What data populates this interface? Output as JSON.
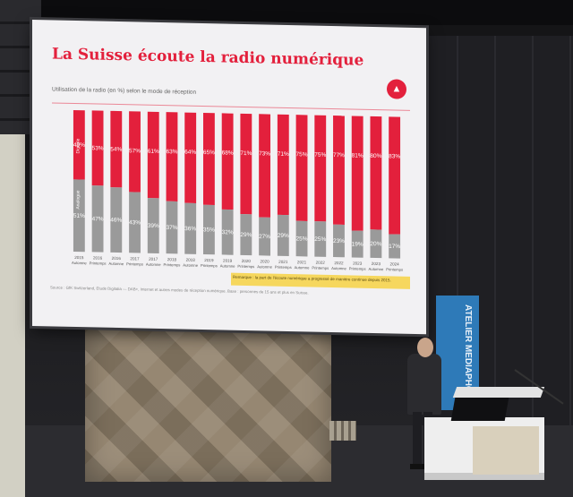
{
  "slide": {
    "title": "La Suisse écoute la radio numérique",
    "subtitle": "Utilisation de la radio (en %) selon le mode de réception",
    "logo_icon": "bar-chart-icon",
    "accent_color": "#e3203c",
    "analog_color": "#9a9a9a",
    "footnote": "Source : GfK Switzerland, Etude Digitalia — DAB+, Internet et autres modes de réception numérique. Base : personnes de 15 ans et plus en Suisse.",
    "yellow_note": "Remarque : la part de l'écoute numérique a progressé de manière continue depuis 2015."
  },
  "chart_data": {
    "type": "bar",
    "stacked": true,
    "categories": [
      "2015 Automne",
      "2016 Printemps",
      "2016 Automne",
      "2017 Printemps",
      "2017 Automne",
      "2018 Printemps",
      "2018 Automne",
      "2019 Printemps",
      "2019 Automne",
      "2020 Printemps",
      "2020 Automne",
      "2021 Printemps",
      "2021 Automne",
      "2022 Printemps",
      "2022 Automne",
      "2023 Printemps",
      "2023 Automne",
      "2024 Printemps"
    ],
    "series": [
      {
        "name": "Digitale",
        "values": [
          49,
          53,
          54,
          57,
          61,
          63,
          64,
          65,
          68,
          71,
          73,
          71,
          75,
          75,
          77,
          81,
          80,
          83
        ]
      },
      {
        "name": "Analogue",
        "values": [
          51,
          47,
          46,
          43,
          39,
          37,
          36,
          35,
          32,
          29,
          27,
          29,
          25,
          25,
          23,
          19,
          20,
          17
        ]
      }
    ],
    "ylim": [
      0,
      100
    ],
    "grid": false
  },
  "banner": {
    "text": "ATELIER MEDIAPHONIQUE ROMAND",
    "color": "#2e7ab8"
  }
}
